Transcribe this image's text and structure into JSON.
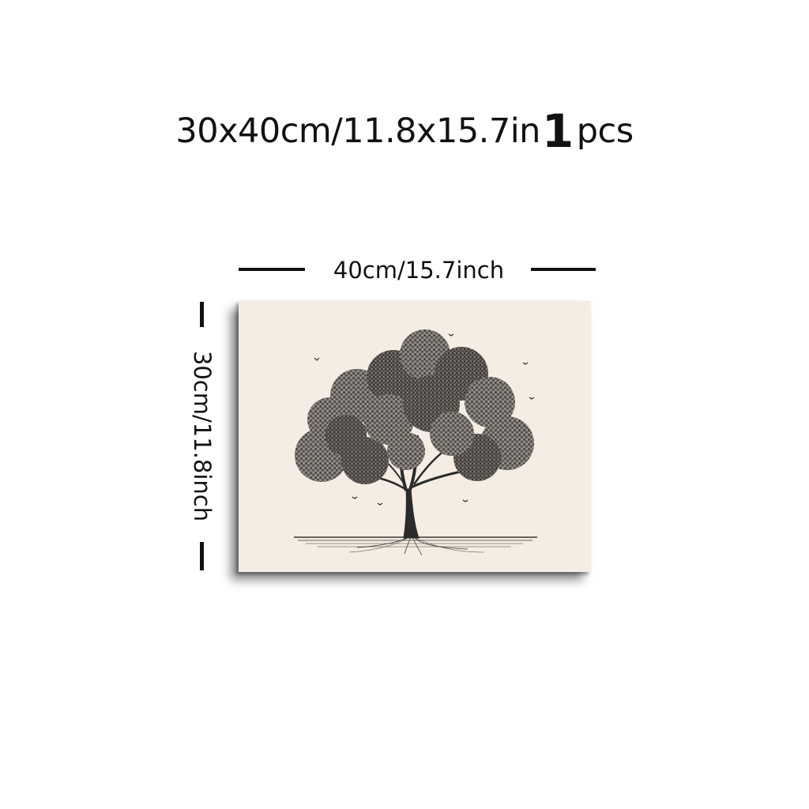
{
  "headline": {
    "size_text": "30x40cm/11.8x15.7in",
    "quantity_number": "1",
    "quantity_unit": "pcs"
  },
  "dimensions": {
    "width_label": "40cm/15.7inch",
    "height_label": "30cm/11.8inch"
  },
  "artwork": {
    "subject": "tree-illustration",
    "background_color": "#f5ede3",
    "ink_color": "#2b2b2b"
  }
}
